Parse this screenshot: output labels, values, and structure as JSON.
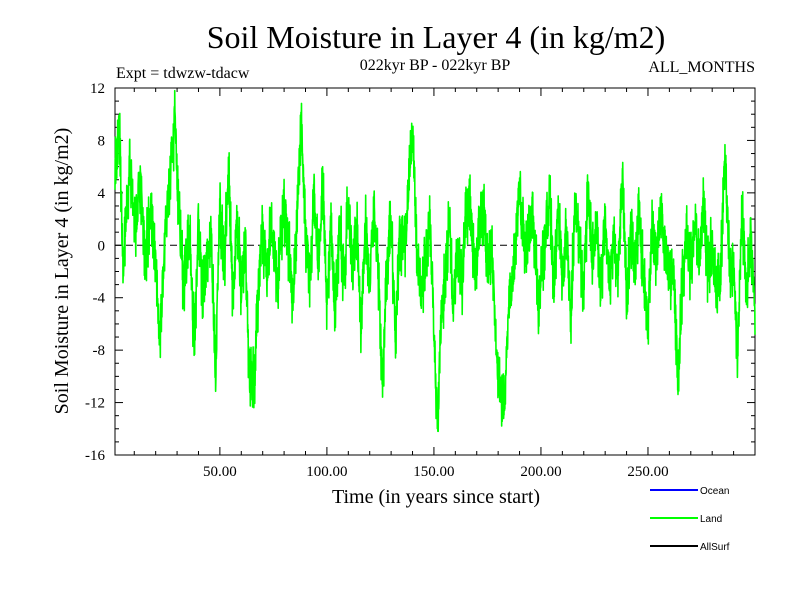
{
  "chart_data": {
    "type": "line",
    "title": "Soil Moisture in Layer 4 (in kg/m2)",
    "subtitle": "022kyr BP - 022kyr BP",
    "experiment": "Expt = tdwzw-tdacw",
    "months_label": "ALL_MONTHS",
    "xlabel": "Time (in years since start)",
    "ylabel": "Soil Moisture in Layer 4 (in kg/m2)",
    "xlim": [
      1,
      300
    ],
    "ylim": [
      -16,
      12
    ],
    "x_ticks": [
      50,
      100,
      150,
      200,
      250
    ],
    "x_tick_labels": [
      "50.00",
      "100.00",
      "150.00",
      "200.00",
      "250.00"
    ],
    "y_ticks": [
      -16,
      -12,
      -8,
      -4,
      0,
      4,
      8,
      12
    ],
    "y_tick_labels": [
      "-16",
      "-12",
      "-8",
      "-4",
      "0",
      "4",
      "8",
      "12"
    ],
    "zero_line": true,
    "series": [
      {
        "name": "Ocean",
        "color": "#0000ff",
        "values": []
      },
      {
        "name": "Land",
        "color": "#00ff00",
        "anchors": [
          [
            1,
            5
          ],
          [
            3,
            9
          ],
          [
            5,
            -2
          ],
          [
            8,
            7
          ],
          [
            10,
            1
          ],
          [
            13,
            5
          ],
          [
            15,
            -1
          ],
          [
            18,
            3
          ],
          [
            20,
            -2
          ],
          [
            22,
            -6.5
          ],
          [
            25,
            2
          ],
          [
            27,
            6
          ],
          [
            29,
            9.5
          ],
          [
            31,
            2
          ],
          [
            33,
            -3
          ],
          [
            36,
            1
          ],
          [
            38,
            -8
          ],
          [
            40,
            2
          ],
          [
            42,
            -4
          ],
          [
            44,
            -1
          ],
          [
            46,
            1
          ],
          [
            48,
            -10
          ],
          [
            50,
            3
          ],
          [
            52,
            -2
          ],
          [
            54,
            6
          ],
          [
            56,
            -4
          ],
          [
            58,
            2
          ],
          [
            60,
            -3
          ],
          [
            62,
            0
          ],
          [
            63,
            -6
          ],
          [
            64,
            -11
          ],
          [
            65,
            -10
          ],
          [
            66,
            -11
          ],
          [
            67,
            -7
          ],
          [
            68,
            -3
          ],
          [
            70,
            1
          ],
          [
            72,
            -2
          ],
          [
            74,
            2
          ],
          [
            77,
            -3
          ],
          [
            80,
            3
          ],
          [
            82,
            0
          ],
          [
            84,
            -4
          ],
          [
            86,
            2
          ],
          [
            88,
            10
          ],
          [
            90,
            1
          ],
          [
            92,
            -3
          ],
          [
            94,
            4
          ],
          [
            96,
            -2
          ],
          [
            98,
            5
          ],
          [
            100,
            -4
          ],
          [
            102,
            1
          ],
          [
            104,
            -5
          ],
          [
            106,
            2
          ],
          [
            108,
            -3
          ],
          [
            110,
            4
          ],
          [
            112,
            -2
          ],
          [
            114,
            1
          ],
          [
            116,
            -6
          ],
          [
            118,
            2
          ],
          [
            120,
            -3
          ],
          [
            122,
            3
          ],
          [
            124,
            -2
          ],
          [
            126,
            -10.5
          ],
          [
            128,
            -2
          ],
          [
            130,
            2
          ],
          [
            132,
            -7
          ],
          [
            134,
            1
          ],
          [
            136,
            -1
          ],
          [
            138,
            4
          ],
          [
            140,
            9
          ],
          [
            142,
            -1
          ],
          [
            144,
            -4
          ],
          [
            146,
            -1
          ],
          [
            148,
            2
          ],
          [
            150,
            -6
          ],
          [
            151,
            -12
          ],
          [
            152,
            -13
          ],
          [
            153,
            -6
          ],
          [
            155,
            -3
          ],
          [
            157,
            2
          ],
          [
            159,
            -5
          ],
          [
            161,
            0
          ],
          [
            163,
            -3
          ],
          [
            165,
            2
          ],
          [
            167,
            4
          ],
          [
            169,
            -3
          ],
          [
            171,
            1
          ],
          [
            173,
            3
          ],
          [
            175,
            -2
          ],
          [
            177,
            0
          ],
          [
            179,
            -8
          ],
          [
            181,
            -11
          ],
          [
            183,
            -12
          ],
          [
            185,
            -4
          ],
          [
            187,
            -2
          ],
          [
            190,
            4
          ],
          [
            193,
            -1
          ],
          [
            196,
            3
          ],
          [
            199,
            -5
          ],
          [
            202,
            1
          ],
          [
            204,
            4
          ],
          [
            206,
            -3
          ],
          [
            208,
            2
          ],
          [
            210,
            -2
          ],
          [
            212,
            1
          ],
          [
            214,
            -5
          ],
          [
            216,
            3
          ],
          [
            218,
            0
          ],
          [
            220,
            -3
          ],
          [
            222,
            4
          ],
          [
            224,
            -1
          ],
          [
            226,
            2
          ],
          [
            228,
            -4
          ],
          [
            230,
            3
          ],
          [
            232,
            -3
          ],
          [
            234,
            1
          ],
          [
            236,
            -2
          ],
          [
            238,
            5
          ],
          [
            240,
            -4
          ],
          [
            242,
            1
          ],
          [
            244,
            -2
          ],
          [
            246,
            3
          ],
          [
            248,
            -3
          ],
          [
            250,
            -6
          ],
          [
            252,
            1
          ],
          [
            254,
            -1
          ],
          [
            256,
            3
          ],
          [
            258,
            0
          ],
          [
            260,
            -3
          ],
          [
            262,
            -2
          ],
          [
            264,
            -10
          ],
          [
            266,
            -3
          ],
          [
            268,
            1
          ],
          [
            270,
            -2
          ],
          [
            272,
            2
          ],
          [
            274,
            -1
          ],
          [
            276,
            3
          ],
          [
            278,
            -2
          ],
          [
            280,
            0
          ],
          [
            282,
            -4
          ],
          [
            284,
            -2
          ],
          [
            286,
            7
          ],
          [
            288,
            -1
          ],
          [
            290,
            -3
          ],
          [
            292,
            -8
          ],
          [
            294,
            3
          ],
          [
            296,
            -4
          ],
          [
            298,
            1
          ],
          [
            300,
            -5
          ]
        ],
        "noise_amplitude": 2.8
      },
      {
        "name": "AllSurf",
        "color": "#000000",
        "values": []
      }
    ],
    "legend_position": "bottom-right"
  }
}
